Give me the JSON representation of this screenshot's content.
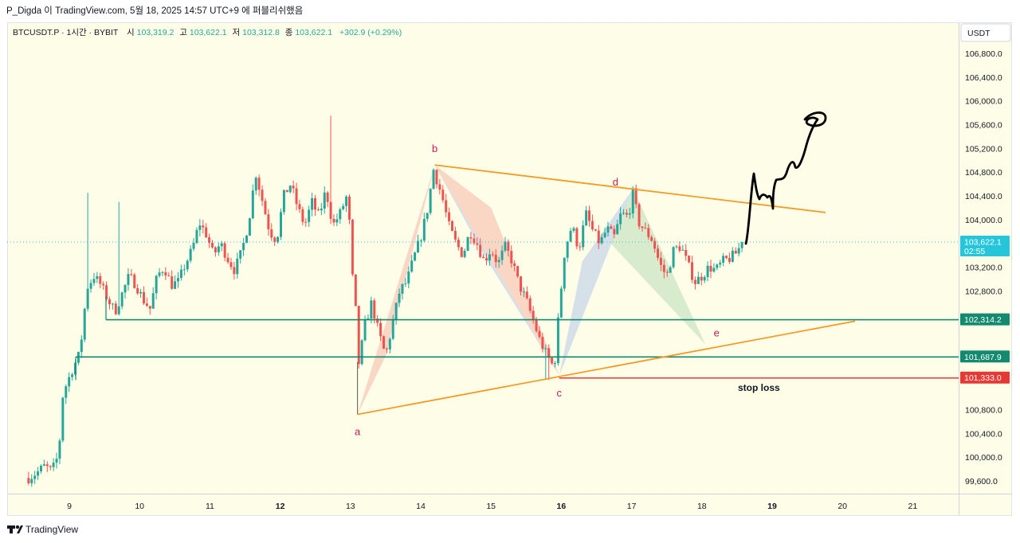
{
  "header": {
    "attribution": "P_Digda 이 TradingView.com, 5월 18, 2025 14:57 UTC+9 에 퍼블리쉬했음"
  },
  "footer": {
    "brand": "TradingView",
    "logo_icon": "tradingview-logo-icon"
  },
  "legend": {
    "symbol": "BTCUSDT.P · 1시간 · BYBIT",
    "open_label": "시",
    "open": "103,319.2",
    "high_label": "고",
    "high": "103,622.1",
    "low_label": "저",
    "low": "103,312.8",
    "close_label": "종",
    "close": "103,622.1",
    "change": "+302.9 (+0.29%)"
  },
  "colors": {
    "background": "#FEFDE8",
    "up": "#26A69A",
    "down": "#EF5350",
    "trendline": "#F59A23",
    "level_line": "#13896F",
    "stoploss": "#E53935",
    "harmonic_red": "#F6B6A8",
    "harmonic_blue": "#B4C8E8",
    "harmonic_green": "#B9DDB6",
    "pattern_label": "#C2185B",
    "price_badge": "#26C6DA"
  },
  "chart_data": {
    "type": "candlestick",
    "symbol": "BTCUSDT.P",
    "interval": "1시간",
    "exchange": "BYBIT",
    "currency": "USDT",
    "y_axis": {
      "label": "USDT",
      "ylim": [
        99400,
        107100
      ],
      "ticks": [
        "106,800.0",
        "106,400.0",
        "106,000.0",
        "105,600.0",
        "105,200.0",
        "104,800.0",
        "104,400.0",
        "104,000.0",
        "103,200.0",
        "102,800.0",
        "100,800.0",
        "100,400.0",
        "100,000.0",
        "99,600.0"
      ]
    },
    "x_axis": {
      "ticks": [
        "9",
        "10",
        "11",
        "12",
        "13",
        "14",
        "15",
        "16",
        "17",
        "18",
        "19",
        "20",
        "21"
      ],
      "bold_ticks": [
        "12",
        "16",
        "19"
      ]
    },
    "price_levels": [
      {
        "price": 103622.1,
        "label": "103,622.1",
        "countdown": "02:55",
        "kind": "last-price"
      },
      {
        "price": 102314.2,
        "label": "102,314.2",
        "kind": "support-line"
      },
      {
        "price": 101687.9,
        "label": "101,687.9",
        "kind": "support-line"
      },
      {
        "price": 101333.0,
        "label": "101,333.0",
        "kind": "stop-loss"
      }
    ],
    "harmonic_points": [
      {
        "name": "a",
        "day": 13.1,
        "price": 100720
      },
      {
        "name": "b",
        "day": 14.2,
        "price": 104920
      },
      {
        "name": "c",
        "day": 15.97,
        "price": 101370
      },
      {
        "name": "d",
        "day": 17.02,
        "price": 104520
      },
      {
        "name": "e",
        "day": 18.05,
        "price": 101900
      }
    ],
    "annotations": {
      "stop_loss": "stop loss"
    },
    "price_path": [
      [
        8.42,
        99650
      ],
      [
        8.55,
        99750
      ],
      [
        8.65,
        99850
      ],
      [
        8.75,
        99760
      ],
      [
        8.85,
        100050
      ],
      [
        8.9,
        101000
      ],
      [
        8.95,
        101200
      ],
      [
        9.05,
        101500
      ],
      [
        9.15,
        101750
      ],
      [
        9.2,
        102300
      ],
      [
        9.25,
        102850
      ],
      [
        9.35,
        103050
      ],
      [
        9.45,
        102900
      ],
      [
        9.55,
        102650
      ],
      [
        9.65,
        102450
      ],
      [
        9.75,
        102750
      ],
      [
        9.85,
        103050
      ],
      [
        9.95,
        102900
      ],
      [
        10.05,
        102650
      ],
      [
        10.15,
        102500
      ],
      [
        10.25,
        103050
      ],
      [
        10.35,
        103200
      ],
      [
        10.45,
        102900
      ],
      [
        10.55,
        102950
      ],
      [
        10.65,
        103250
      ],
      [
        10.75,
        103500
      ],
      [
        10.85,
        103950
      ],
      [
        10.95,
        103750
      ],
      [
        11.05,
        103400
      ],
      [
        11.15,
        103600
      ],
      [
        11.25,
        103350
      ],
      [
        11.35,
        103150
      ],
      [
        11.45,
        103450
      ],
      [
        11.55,
        103950
      ],
      [
        11.65,
        104800
      ],
      [
        11.75,
        104300
      ],
      [
        11.85,
        103800
      ],
      [
        11.95,
        103650
      ],
      [
        12.05,
        104400
      ],
      [
        12.15,
        104600
      ],
      [
        12.25,
        104200
      ],
      [
        12.35,
        103900
      ],
      [
        12.45,
        104300
      ],
      [
        12.55,
        104050
      ],
      [
        12.65,
        104500
      ],
      [
        12.75,
        103900
      ],
      [
        12.85,
        104100
      ],
      [
        12.95,
        104400
      ],
      [
        13.0,
        103750
      ],
      [
        13.03,
        103000
      ],
      [
        13.08,
        102400
      ],
      [
        13.12,
        101550
      ],
      [
        13.2,
        102200
      ],
      [
        13.3,
        102600
      ],
      [
        13.4,
        102100
      ],
      [
        13.5,
        101700
      ],
      [
        13.6,
        102250
      ],
      [
        13.7,
        102800
      ],
      [
        13.8,
        102950
      ],
      [
        13.9,
        103350
      ],
      [
        14.0,
        103700
      ],
      [
        14.1,
        104200
      ],
      [
        14.18,
        104850
      ],
      [
        14.3,
        104400
      ],
      [
        14.4,
        103900
      ],
      [
        14.5,
        103600
      ],
      [
        14.6,
        103400
      ],
      [
        14.7,
        103800
      ],
      [
        14.8,
        103600
      ],
      [
        14.9,
        103300
      ],
      [
        15.0,
        103500
      ],
      [
        15.1,
        103250
      ],
      [
        15.2,
        103550
      ],
      [
        15.3,
        103300
      ],
      [
        15.4,
        102900
      ],
      [
        15.5,
        102650
      ],
      [
        15.6,
        102300
      ],
      [
        15.7,
        101950
      ],
      [
        15.8,
        101700
      ],
      [
        15.9,
        101500
      ],
      [
        15.97,
        102500
      ],
      [
        16.05,
        103500
      ],
      [
        16.15,
        103900
      ],
      [
        16.25,
        103500
      ],
      [
        16.35,
        104100
      ],
      [
        16.45,
        103800
      ],
      [
        16.55,
        103600
      ],
      [
        16.65,
        103850
      ],
      [
        16.75,
        103700
      ],
      [
        16.85,
        104100
      ],
      [
        16.95,
        104050
      ],
      [
        17.02,
        104450
      ],
      [
        17.1,
        103950
      ],
      [
        17.2,
        103800
      ],
      [
        17.3,
        103650
      ],
      [
        17.4,
        103250
      ],
      [
        17.5,
        103050
      ],
      [
        17.6,
        103500
      ],
      [
        17.7,
        103550
      ],
      [
        17.8,
        103250
      ],
      [
        17.9,
        102950
      ],
      [
        18.0,
        103050
      ],
      [
        18.1,
        103200
      ],
      [
        18.2,
        103150
      ],
      [
        18.3,
        103300
      ],
      [
        18.4,
        103350
      ],
      [
        18.5,
        103450
      ],
      [
        18.57,
        103622.1
      ]
    ],
    "candle_count": 230
  }
}
